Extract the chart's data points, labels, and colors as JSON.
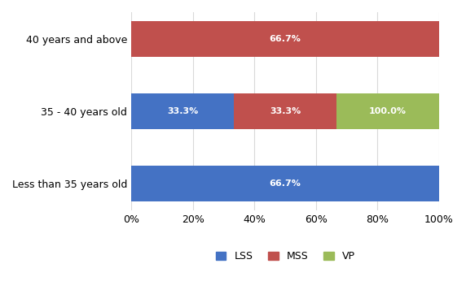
{
  "categories": [
    "Less than 35 years old",
    "35 - 40 years old",
    "40 years and above"
  ],
  "series": {
    "LSS": [
      100.0,
      33.3,
      0.0
    ],
    "MSS": [
      0.0,
      33.3,
      100.0
    ],
    "VP": [
      0.0,
      33.4,
      0.0
    ]
  },
  "labels": {
    "LSS": [
      "66.7%",
      "33.3%",
      ""
    ],
    "MSS": [
      "",
      "33.3%",
      "66.7%"
    ],
    "VP": [
      "",
      "100.0%",
      ""
    ]
  },
  "colors": {
    "LSS": "#4472C4",
    "MSS": "#C0504D",
    "VP": "#9BBB59"
  },
  "xlim": [
    0,
    100
  ],
  "xticks": [
    0,
    20,
    40,
    60,
    80,
    100
  ],
  "xtick_labels": [
    "0%",
    "20%",
    "40%",
    "60%",
    "80%",
    "100%"
  ],
  "bar_height": 0.5,
  "background_color": "#FFFFFF",
  "grid_color": "#D9D9D9",
  "label_fontsize": 8,
  "tick_fontsize": 9,
  "legend_fontsize": 9
}
